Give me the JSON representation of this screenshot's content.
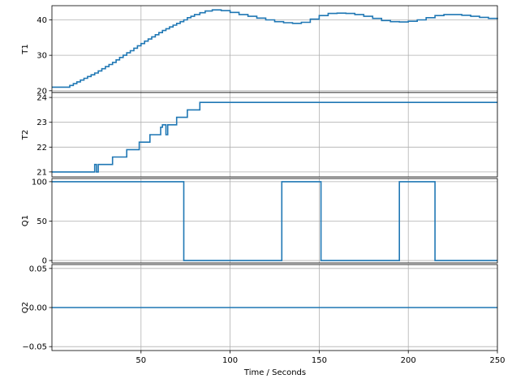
{
  "chart_data": {
    "type": "line",
    "xlabel": "Time / Seconds",
    "xlim": [
      0,
      250
    ],
    "xticks": [
      50,
      100,
      150,
      200,
      250
    ],
    "grid": true,
    "line_color": "#1f77b4",
    "panels": [
      {
        "ylabel": "T1",
        "ylim": [
          19.5,
          44
        ],
        "yticks": [
          20,
          30,
          40
        ],
        "series": [
          {
            "x": [
              0,
              8,
              10,
              12,
              14,
              16,
              18,
              20,
              22,
              24,
              26,
              28,
              30,
              32,
              34,
              36,
              38,
              40,
              42,
              44,
              46,
              48,
              50,
              52,
              54,
              56,
              58,
              60,
              62,
              64,
              66,
              68,
              70,
              72,
              74,
              76,
              78,
              80,
              83,
              86,
              90,
              95,
              100,
              105,
              110,
              115,
              120,
              125,
              130,
              135,
              140,
              145,
              150,
              155,
              160,
              165,
              170,
              175,
              180,
              185,
              190,
              195,
              200,
              205,
              210,
              215,
              220,
              225,
              230,
              235,
              240,
              245,
              250
            ],
            "y": [
              21,
              21,
              21.5,
              22,
              22.5,
              23,
              23.5,
              24,
              24.5,
              25,
              25.6,
              26.2,
              26.8,
              27.4,
              28,
              28.7,
              29.4,
              30,
              30.7,
              31.3,
              32,
              32.7,
              33.3,
              34,
              34.6,
              35.2,
              35.8,
              36.4,
              37,
              37.5,
              38,
              38.5,
              39,
              39.5,
              40,
              40.6,
              41,
              41.5,
              42,
              42.5,
              42.8,
              42.6,
              42.1,
              41.5,
              41,
              40.5,
              40,
              39.5,
              39.2,
              39,
              39.3,
              40.2,
              41.2,
              41.8,
              41.9,
              41.8,
              41.5,
              41,
              40.4,
              39.8,
              39.5,
              39.4,
              39.6,
              40,
              40.6,
              41.2,
              41.5,
              41.5,
              41.3,
              41,
              40.7,
              40.4,
              40.2
            ]
          }
        ]
      },
      {
        "ylabel": "T2",
        "ylim": [
          20.8,
          24.2
        ],
        "yticks": [
          21,
          22,
          23,
          24
        ],
        "series": [
          {
            "x": [
              0,
              23,
              24,
              25,
              26,
              33,
              34,
              35,
              42,
              49,
              55,
              61,
              62,
              64,
              65,
              70,
              76,
              83,
              91,
              138,
              139,
              141,
              144,
              145,
              146,
              148,
              151,
              152,
              153,
              205,
              206,
              208,
              213,
              214,
              216,
              218,
              250
            ],
            "y": [
              21,
              21,
              21.3,
              21,
              21.3,
              21.3,
              21.6,
              21.6,
              21.9,
              22.2,
              22.5,
              22.8,
              22.9,
              22.5,
              22.9,
              23.2,
              23.5,
              23.8,
              23.8,
              23.8,
              23.8,
              23.8,
              23.8,
              23.8,
              23.8,
              23.8,
              23.8,
              23.8,
              23.8,
              23.8,
              23.8,
              23.8,
              23.8,
              23.8,
              23.8,
              23.8,
              23.8
            ]
          }
        ]
      },
      {
        "ylabel": "Q1",
        "ylim": [
          -3,
          104
        ],
        "yticks": [
          0,
          50,
          100
        ],
        "series": [
          {
            "x": [
              0,
              74,
              74,
              129,
              129,
              151,
              151,
              195,
              195,
              215,
              215,
              250
            ],
            "y": [
              100,
              100,
              0,
              0,
              100,
              100,
              0,
              0,
              100,
              100,
              0,
              0
            ]
          }
        ]
      },
      {
        "ylabel": "Q2",
        "ylim": [
          -0.055,
          0.055
        ],
        "yticks": [
          -0.05,
          0.0,
          0.05
        ],
        "yticklabels": [
          "−0.05",
          "0.00",
          "0.05"
        ],
        "series": [
          {
            "x": [
              0,
              250
            ],
            "y": [
              0,
              0
            ]
          }
        ]
      }
    ]
  }
}
